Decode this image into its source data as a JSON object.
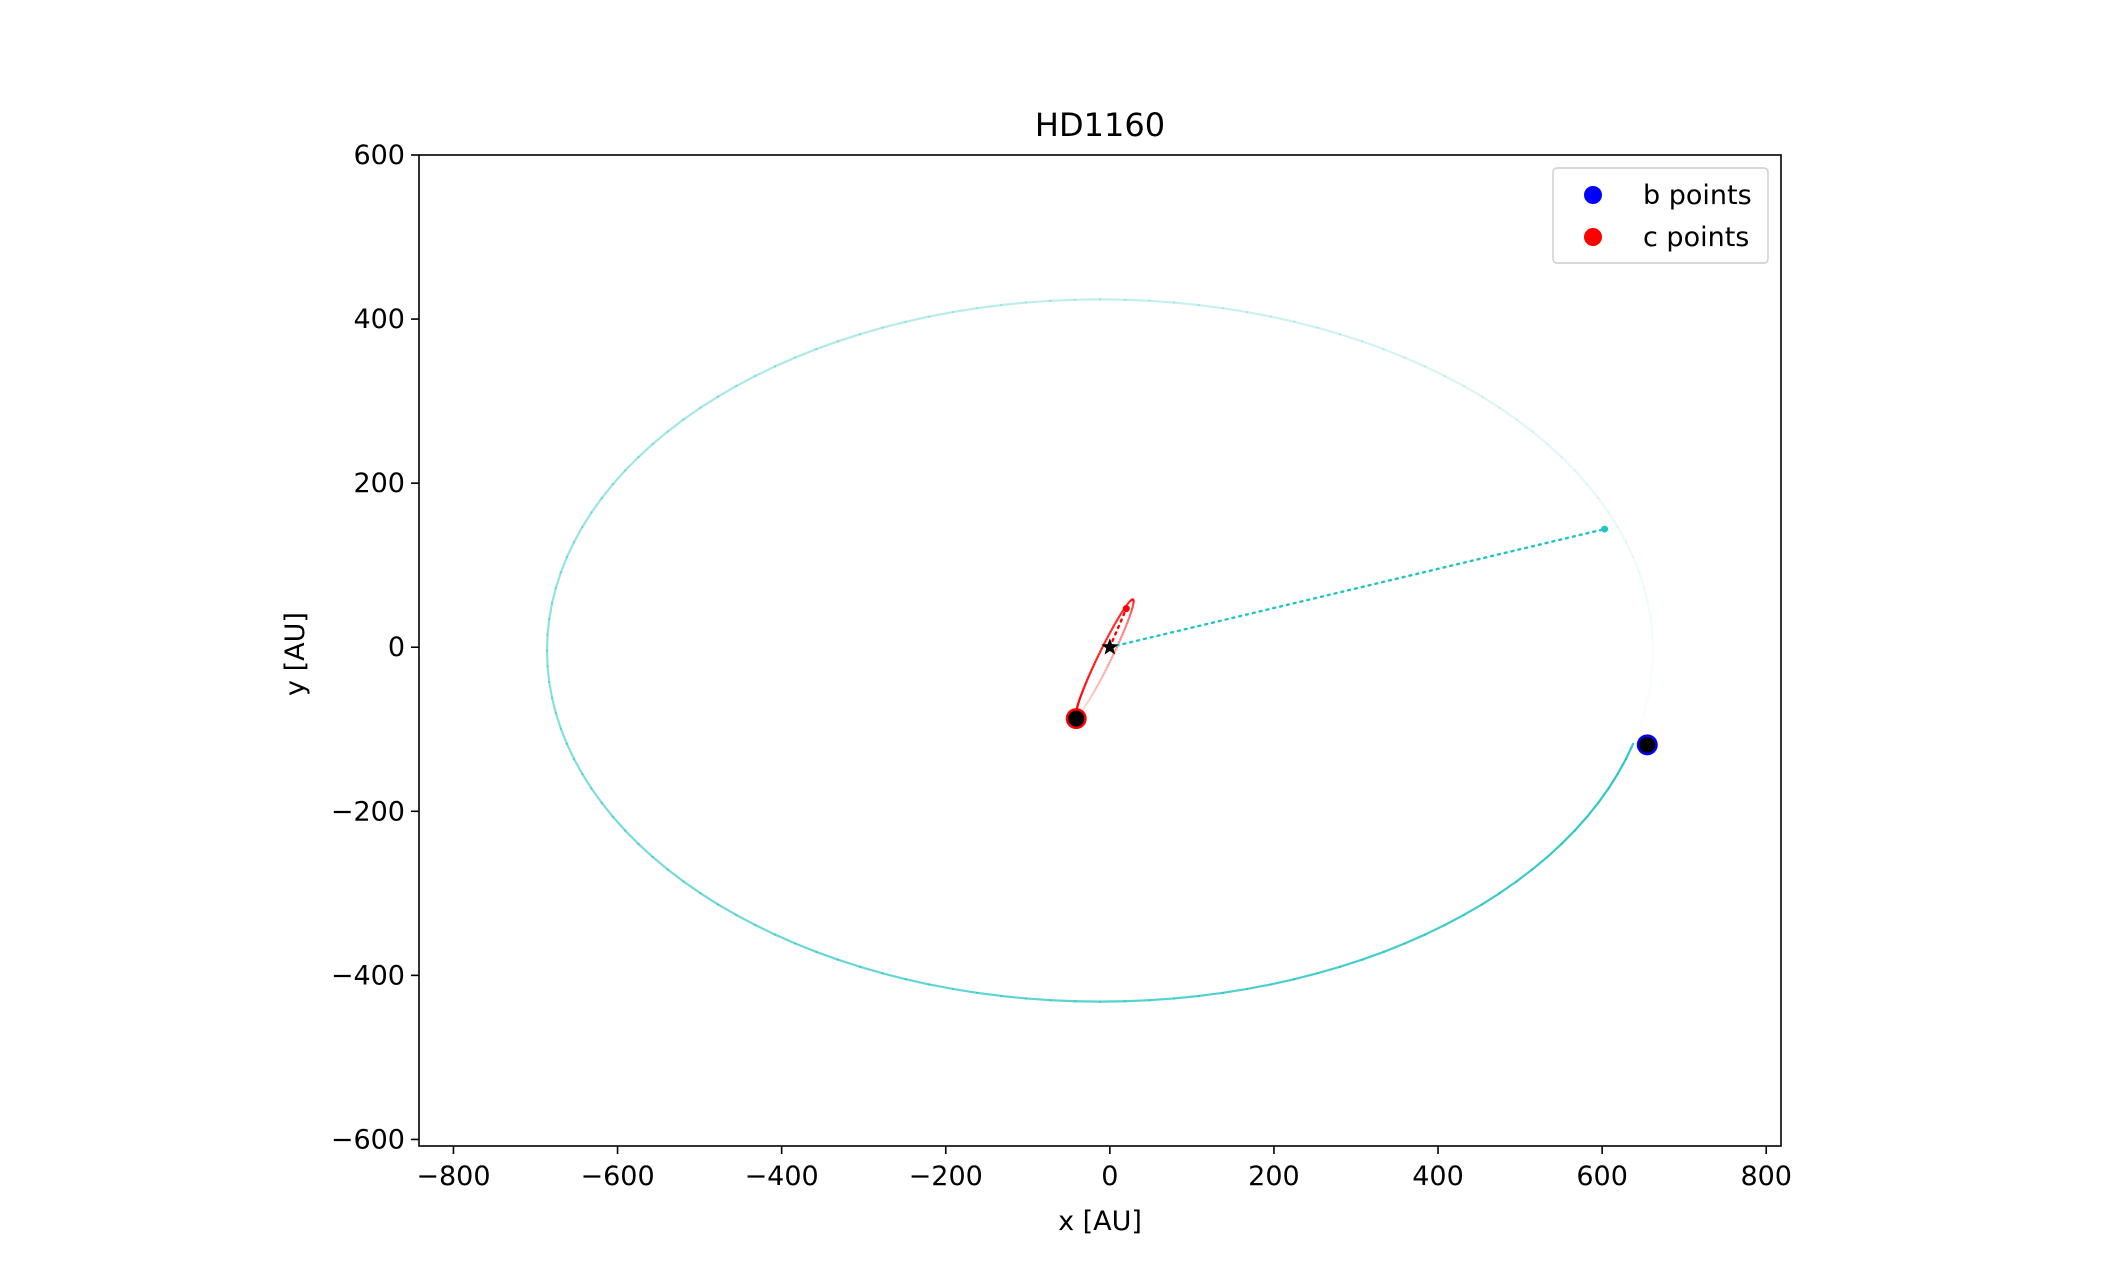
{
  "chart_data": {
    "type": "scatter",
    "title": "HD1160",
    "xlabel": "x [AU]",
    "ylabel": "y [AU]",
    "xlim": [
      -842,
      818
    ],
    "ylim": [
      -608,
      600
    ],
    "xticks": [
      -800,
      -600,
      -400,
      -200,
      0,
      200,
      400,
      600,
      800
    ],
    "xtick_labels": [
      "−800",
      "−600",
      "−400",
      "−200",
      "0",
      "200",
      "400",
      "600",
      "800"
    ],
    "yticks": [
      -600,
      -400,
      -200,
      0,
      200,
      400,
      600
    ],
    "ytick_labels": [
      "−600",
      "−400",
      "−200",
      "0",
      "200",
      "400",
      "600"
    ],
    "grid": false,
    "legend_position": "top-right",
    "legend": [
      {
        "label": "b points",
        "color": "#0000ff"
      },
      {
        "label": "c points",
        "color": "#ff0000"
      }
    ],
    "star": {
      "x": 0,
      "y": 0,
      "color": "#000000"
    },
    "series": [
      {
        "name": "b points",
        "color": "#0000ff",
        "orbit_color": "#22c4c4",
        "orbit": {
          "center_x": -12,
          "center_y": -4,
          "semi_x": 674,
          "semi_y": 428
        },
        "point": {
          "x": 655,
          "y": -119
        },
        "marker": {
          "x": 603,
          "y": 144
        }
      },
      {
        "name": "c points",
        "color": "#ff0000",
        "orbit_color": "#ff0000",
        "orbit": {
          "center_x": -6,
          "center_y": -12,
          "semi_x": 78,
          "semi_y": 8,
          "rotation_deg": 64
        },
        "point": {
          "x": -41,
          "y": -87
        },
        "marker": {
          "x": 20,
          "y": 47
        }
      }
    ]
  }
}
